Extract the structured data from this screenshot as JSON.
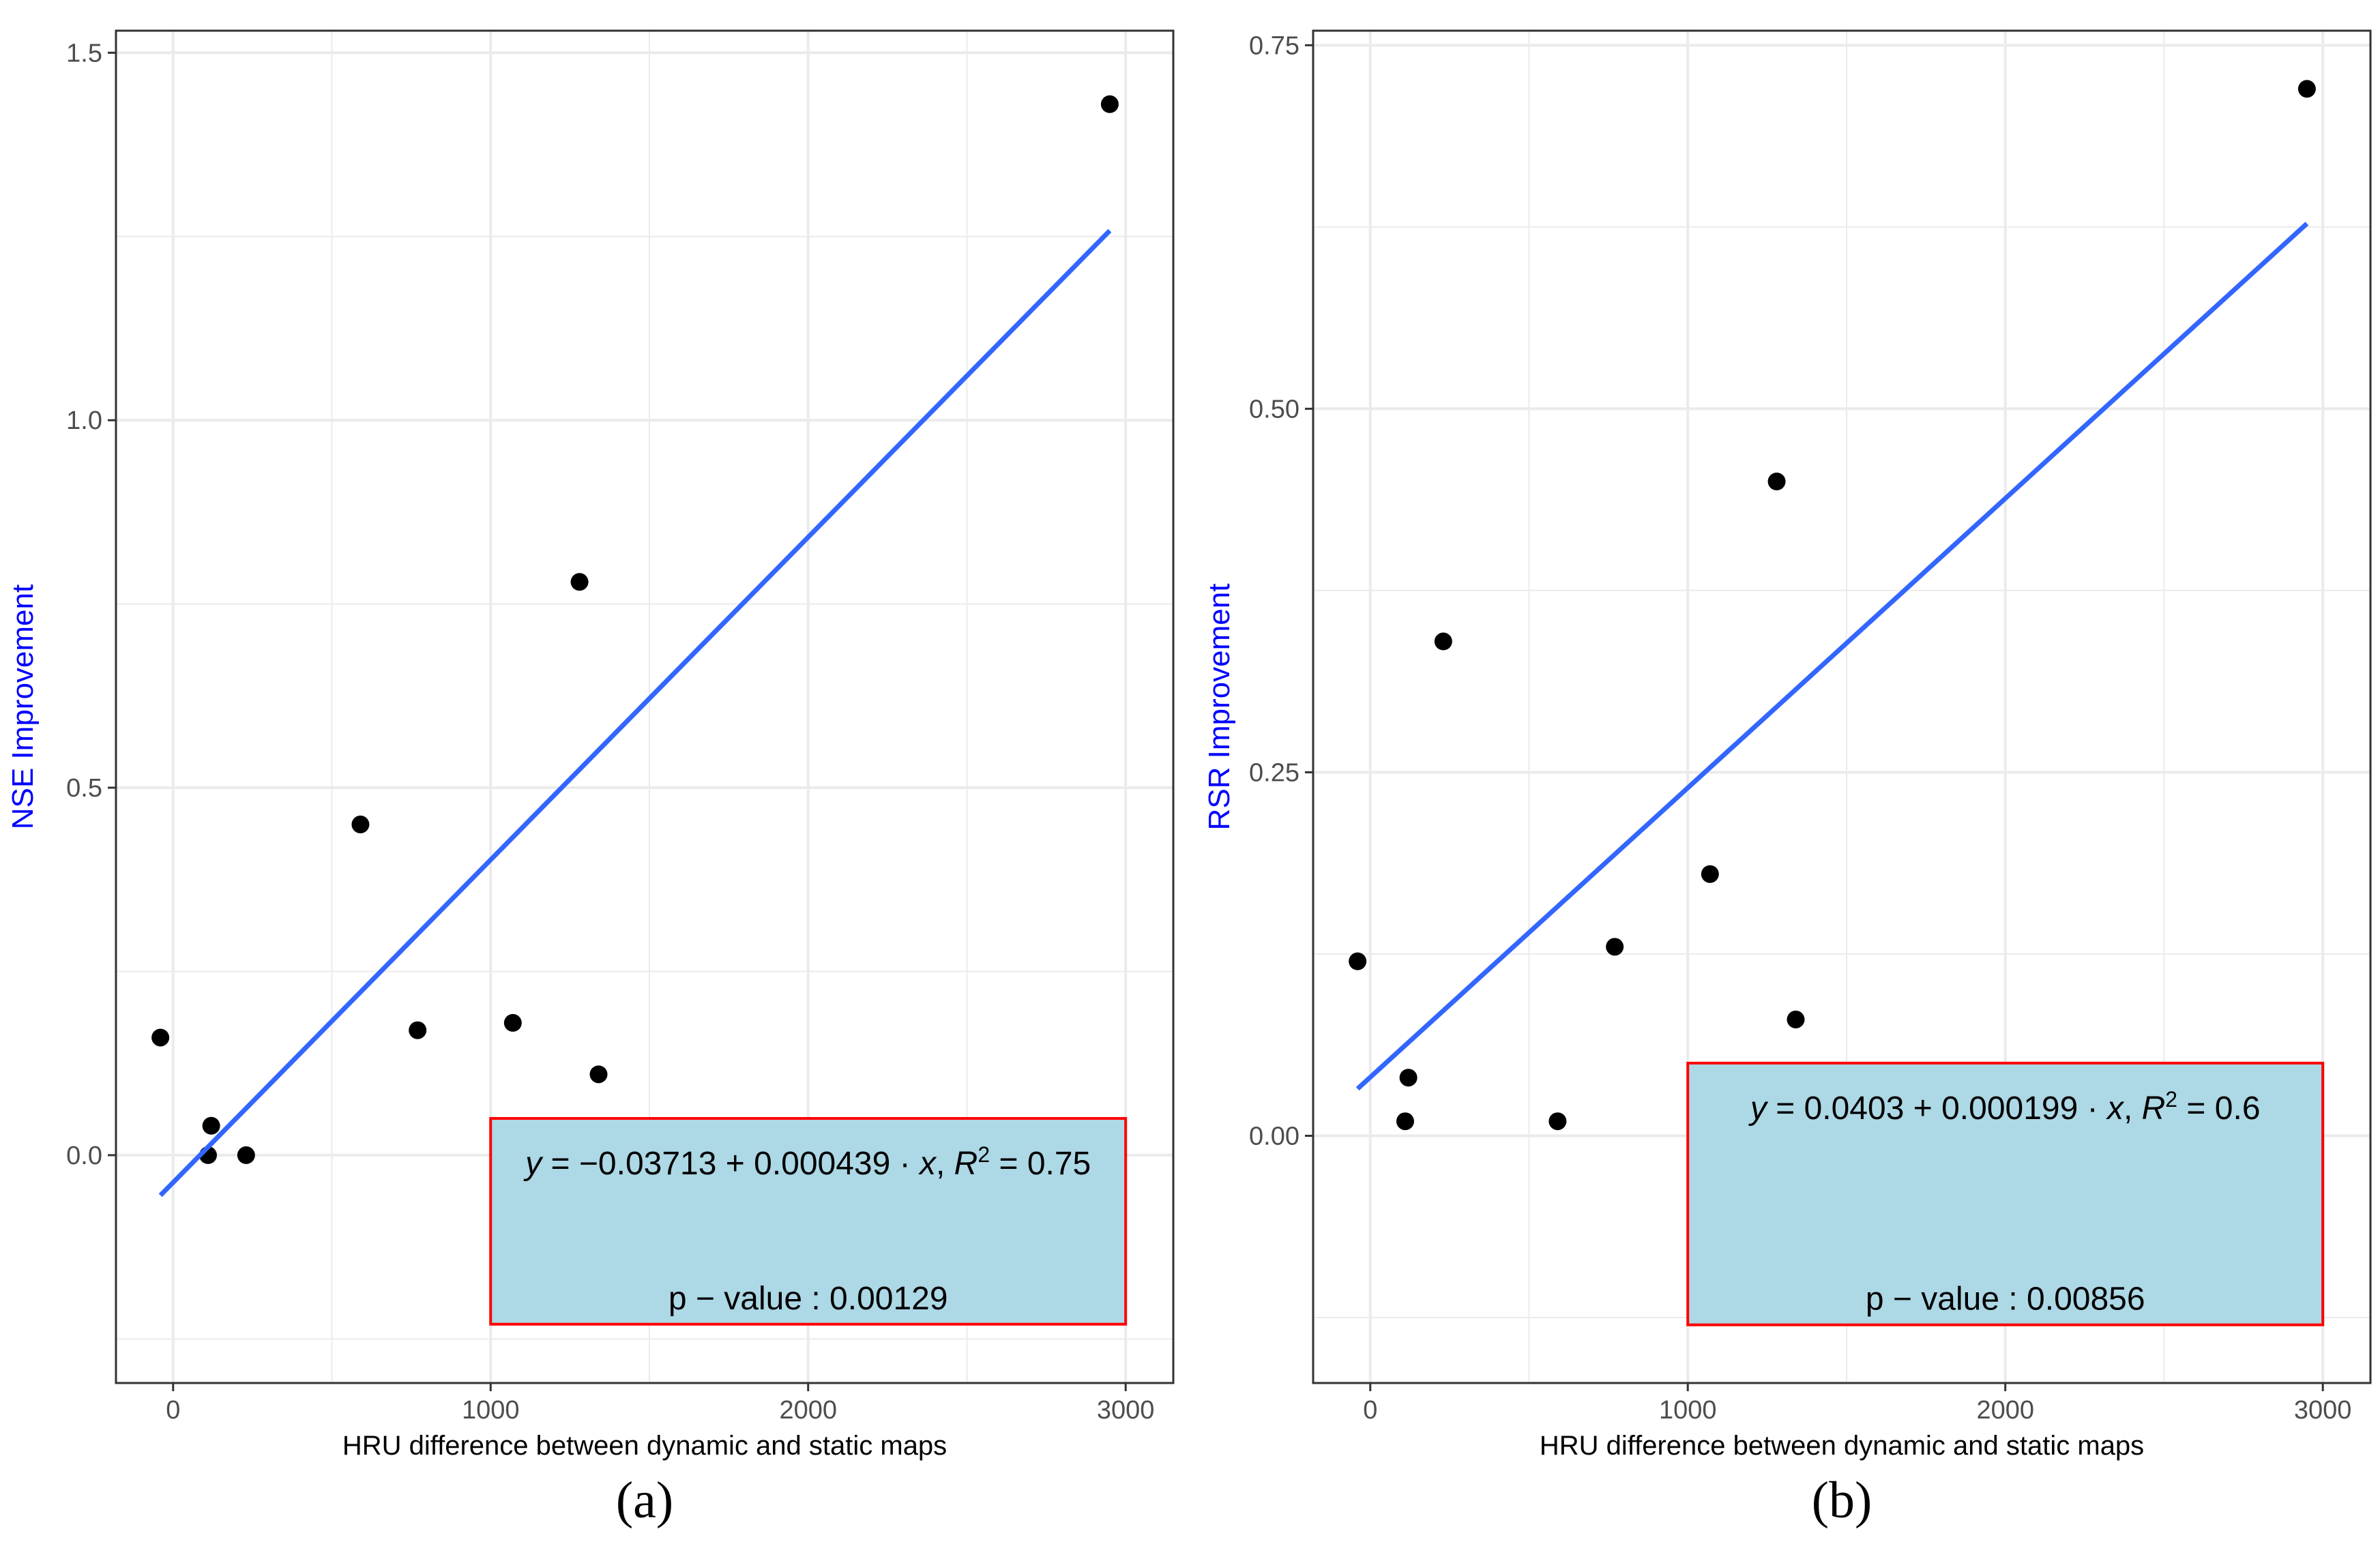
{
  "colors": {
    "points": "#000000",
    "fit_line": "#3366ff",
    "grid": "#ebebeb",
    "panel_border": "#333333",
    "ylabel": "#0000ff",
    "annotation_fill": "#add8e6",
    "annotation_border": "#ff0000"
  },
  "chart_data": [
    {
      "type": "scatter",
      "panel_label": "(a)",
      "xlabel": "HRU difference between dynamic and static maps",
      "ylabel": "NSE Improvement",
      "xlim": [
        -180,
        3150
      ],
      "ylim": [
        -0.31,
        1.53
      ],
      "x_ticks": [
        0,
        1000,
        2000,
        3000
      ],
      "x_tick_labels": [
        "0",
        "1000",
        "2000",
        "3000"
      ],
      "y_ticks": [
        0.0,
        0.5,
        1.0,
        1.5
      ],
      "y_tick_labels": [
        "0.0",
        "0.5",
        "1.0",
        "1.5"
      ],
      "grid": true,
      "points": [
        {
          "x": -40,
          "y": 0.16
        },
        {
          "x": 110,
          "y": 0.0
        },
        {
          "x": 120,
          "y": 0.04
        },
        {
          "x": 230,
          "y": 0.0
        },
        {
          "x": 590,
          "y": 0.45
        },
        {
          "x": 770,
          "y": 0.17
        },
        {
          "x": 1070,
          "y": 0.18
        },
        {
          "x": 1280,
          "y": 0.78
        },
        {
          "x": 1340,
          "y": 0.11
        },
        {
          "x": 2950,
          "y": 1.43
        }
      ],
      "fit": {
        "intercept": -0.03713,
        "slope": 0.000439,
        "x_range": [
          -40,
          2950
        ]
      },
      "annotation": {
        "box_x_range": [
          1000,
          3000
        ],
        "box_y_range": [
          -0.23,
          0.05
        ],
        "equation": {
          "y_var": "y",
          "equals": "=",
          "body": "−0.03713 + 0.000439 · ",
          "x_var": "x",
          "sep": ",",
          "r_var": "R",
          "r_exp": "2",
          "r_eq": " = 0.75"
        },
        "pvalue": {
          "label": "p − value",
          "colon": " : ",
          "value": "0.00129"
        }
      }
    },
    {
      "type": "scatter",
      "panel_label": "(b)",
      "xlabel": "HRU difference between dynamic and static maps",
      "ylabel": "RSR Improvement",
      "xlim": [
        -180,
        3150
      ],
      "ylim": [
        -0.17,
        0.76
      ],
      "x_ticks": [
        0,
        1000,
        2000,
        3000
      ],
      "x_tick_labels": [
        "0",
        "1000",
        "2000",
        "3000"
      ],
      "y_ticks": [
        0.0,
        0.25,
        0.5,
        0.75
      ],
      "y_tick_labels": [
        "0.00",
        "0.25",
        "0.50",
        "0.75"
      ],
      "grid": true,
      "points": [
        {
          "x": -40,
          "y": 0.12
        },
        {
          "x": 110,
          "y": 0.01
        },
        {
          "x": 120,
          "y": 0.04
        },
        {
          "x": 230,
          "y": 0.34
        },
        {
          "x": 590,
          "y": 0.01
        },
        {
          "x": 770,
          "y": 0.13
        },
        {
          "x": 1070,
          "y": 0.18
        },
        {
          "x": 1280,
          "y": 0.45
        },
        {
          "x": 1340,
          "y": 0.08
        },
        {
          "x": 2950,
          "y": 0.72
        }
      ],
      "fit": {
        "intercept": 0.0403,
        "slope": 0.000199,
        "x_range": [
          -40,
          2950
        ]
      },
      "annotation": {
        "box_x_range": [
          1000,
          3000
        ],
        "box_y_range": [
          -0.13,
          0.05
        ],
        "equation": {
          "y_var": "y",
          "equals": "=",
          "body": "0.0403 + 0.000199 · ",
          "x_var": "x",
          "sep": ",",
          "r_var": "R",
          "r_exp": "2",
          "r_eq": " = 0.6"
        },
        "pvalue": {
          "label": "p − value",
          "colon": " : ",
          "value": "0.00856"
        }
      }
    }
  ]
}
